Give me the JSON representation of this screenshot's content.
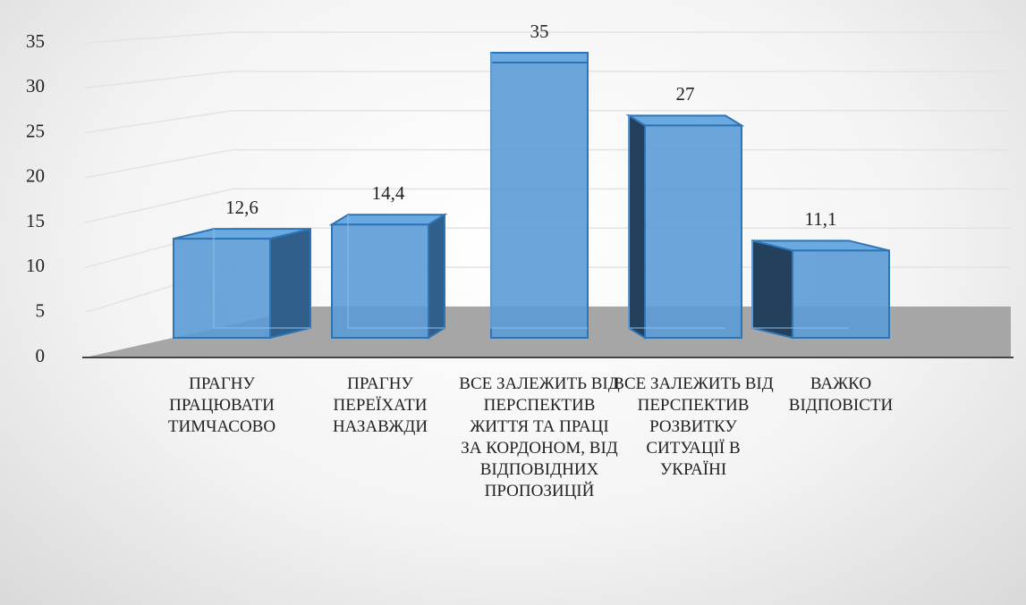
{
  "chart_data": {
    "type": "bar3d",
    "categories": [
      "ПРАГНУ ПРАЦЮВАТИ ТИМЧАСОВО",
      "ПРАГНУ ПЕРЕЇХАТИ НАЗАВЖДИ",
      "ВСЕ ЗАЛЕЖИТЬ ВІД ПЕРСПЕКТИВ ЖИТТЯ ТА ПРАЦІ ЗА КОРДОНОМ, ВІД ВІДПОВІДНИХ ПРОПОЗИЦІЙ",
      "ВСЕ ЗАЛЕЖИТЬ ВІД ПЕРСПЕКТИВ РОЗВИТКУ СИТУАЦІЇ В УКРАЇНІ",
      "ВАЖКО ВІДПОВІСТИ"
    ],
    "values": [
      12.6,
      14.4,
      35,
      27,
      11.1
    ],
    "value_labels": [
      "12,6",
      "14,4",
      "35",
      "27",
      "11,1"
    ],
    "color": "#5b9bd5",
    "ylim": [
      0,
      35
    ],
    "yticks": [
      0,
      5,
      10,
      15,
      20,
      25,
      30,
      35
    ],
    "grid": true
  }
}
